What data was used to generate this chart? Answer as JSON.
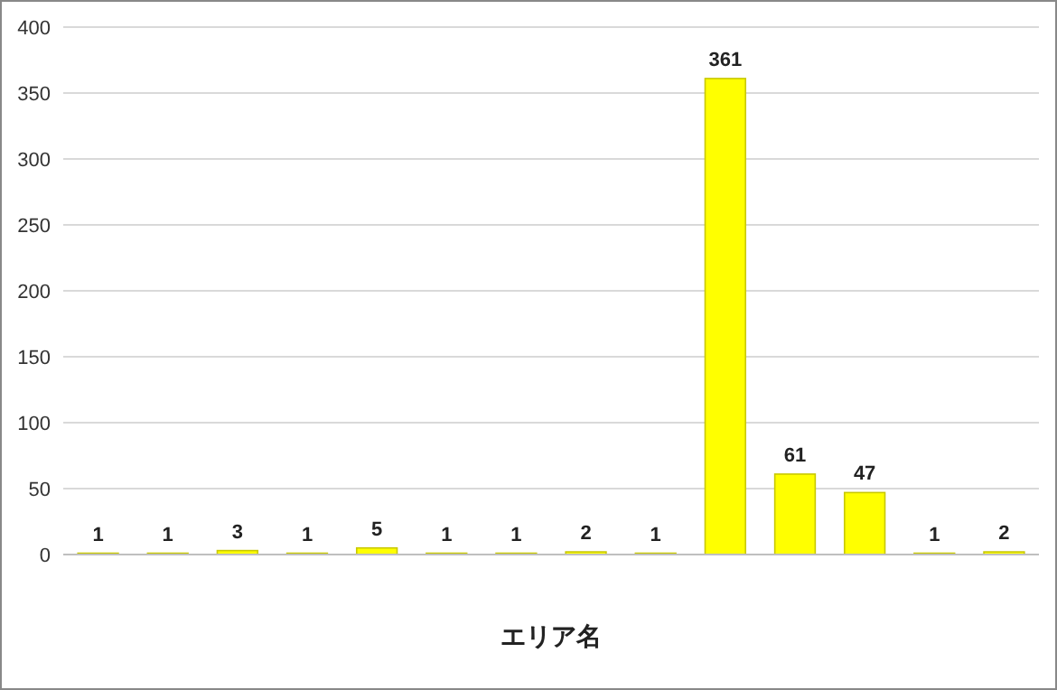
{
  "chart_data": {
    "type": "bar",
    "xlabel": "エリア名",
    "categories": [
      null,
      null,
      null,
      null,
      null,
      null,
      null,
      null,
      null,
      null,
      null,
      null,
      null,
      null
    ],
    "values": [
      1,
      1,
      3,
      1,
      5,
      1,
      1,
      2,
      1,
      361,
      61,
      47,
      1,
      2
    ],
    "color": "#ffff00",
    "ylim": [
      0,
      400
    ],
    "yticks": [
      0,
      50,
      100,
      150,
      200,
      250,
      300,
      350,
      400
    ],
    "grid": "y",
    "data_labels": true
  }
}
